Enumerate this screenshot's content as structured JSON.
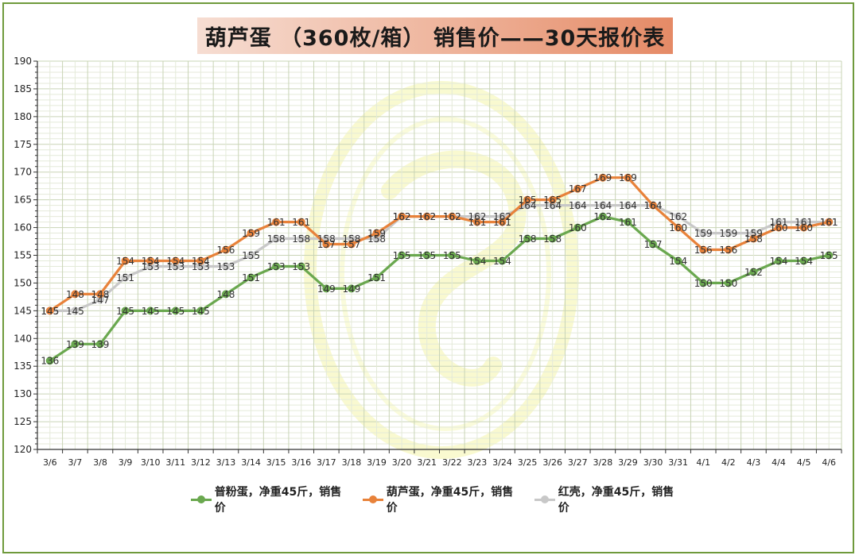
{
  "title": "葫芦蛋 （360枚/箱） 销售价——30天报价表",
  "chart_data": {
    "type": "line",
    "title": "葫芦蛋 （360枚/箱） 销售价——30天报价表",
    "categories": [
      "3/6",
      "3/7",
      "3/8",
      "3/9",
      "3/10",
      "3/11",
      "3/12",
      "3/13",
      "3/14",
      "3/15",
      "3/16",
      "3/17",
      "3/18",
      "3/19",
      "3/20",
      "3/21",
      "3/22",
      "3/23",
      "3/24",
      "3/25",
      "3/26",
      "3/27",
      "3/28",
      "3/29",
      "3/30",
      "3/31",
      "4/1",
      "4/2",
      "4/3",
      "4/4",
      "4/5",
      "4/6"
    ],
    "ylim": [
      120,
      190
    ],
    "yticks": [
      120,
      125,
      130,
      135,
      140,
      145,
      150,
      155,
      160,
      165,
      170,
      175,
      180,
      185,
      190
    ],
    "grid": true,
    "legend_position": "bottom",
    "series": [
      {
        "name": "普粉蛋，净重45斤，销售价",
        "color": "#6aa84f",
        "values": [
          136,
          139,
          139,
          145,
          145,
          145,
          145,
          148,
          151,
          153,
          153,
          149,
          149,
          151,
          155,
          155,
          155,
          154,
          154,
          158,
          158,
          160,
          162,
          161,
          157,
          154,
          150,
          150,
          152,
          154,
          154,
          155
        ]
      },
      {
        "name": "葫芦蛋，净重45斤，销售价",
        "color": "#e8823a",
        "values": [
          145,
          148,
          148,
          154,
          154,
          154,
          154,
          156,
          159,
          161,
          161,
          157,
          157,
          159,
          162,
          162,
          162,
          161,
          161,
          165,
          165,
          167,
          169,
          169,
          164,
          160,
          156,
          156,
          158,
          160,
          160,
          161
        ]
      },
      {
        "name": "红壳，净重45斤，销售价",
        "color": "#c8c8c8",
        "values": [
          145,
          145,
          147,
          151,
          153,
          153,
          153,
          153,
          155,
          158,
          158,
          158,
          158,
          158,
          162,
          162,
          162,
          162,
          162,
          164,
          164,
          164,
          164,
          164,
          164,
          162,
          159,
          159,
          159,
          161,
          161,
          161
        ]
      }
    ]
  }
}
